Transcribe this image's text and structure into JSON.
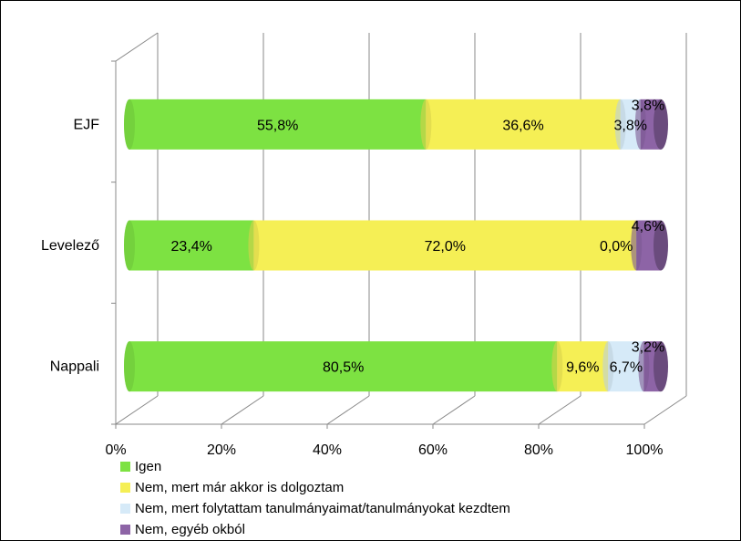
{
  "chart_data": {
    "type": "bar",
    "orientation": "horizontal",
    "stacked": "100%",
    "categories": [
      "Nappali",
      "Levelező",
      "EJF"
    ],
    "series": [
      {
        "name": "Igen",
        "color": "#7DE242",
        "values": [
          80.5,
          23.4,
          55.8
        ],
        "labels": [
          "80,5%",
          "23,4%",
          "55,8%"
        ]
      },
      {
        "name": "Nem, mert már akkor is dolgoztam",
        "color": "#F5EF55",
        "values": [
          9.6,
          72.0,
          36.6
        ],
        "labels": [
          "9,6%",
          "72,0%",
          "36,6%"
        ]
      },
      {
        "name": "Nem, mert folytattam tanulmányaimat/tanulmányokat kezdtem",
        "color": "#D6EAF8",
        "values": [
          6.7,
          0.0,
          3.8
        ],
        "labels": [
          "6,7%",
          "0,0%",
          "3,8%"
        ]
      },
      {
        "name": "Nem, egyéb okból",
        "color": "#8D64A6",
        "values": [
          3.2,
          4.6,
          3.8
        ],
        "labels": [
          "3,2%",
          "4,6%",
          "3,8%"
        ]
      }
    ],
    "x_ticks": [
      "0%",
      "20%",
      "40%",
      "60%",
      "80%",
      "100%"
    ],
    "xlim": [
      0,
      100
    ],
    "grid": true,
    "legend_position": "bottom"
  }
}
